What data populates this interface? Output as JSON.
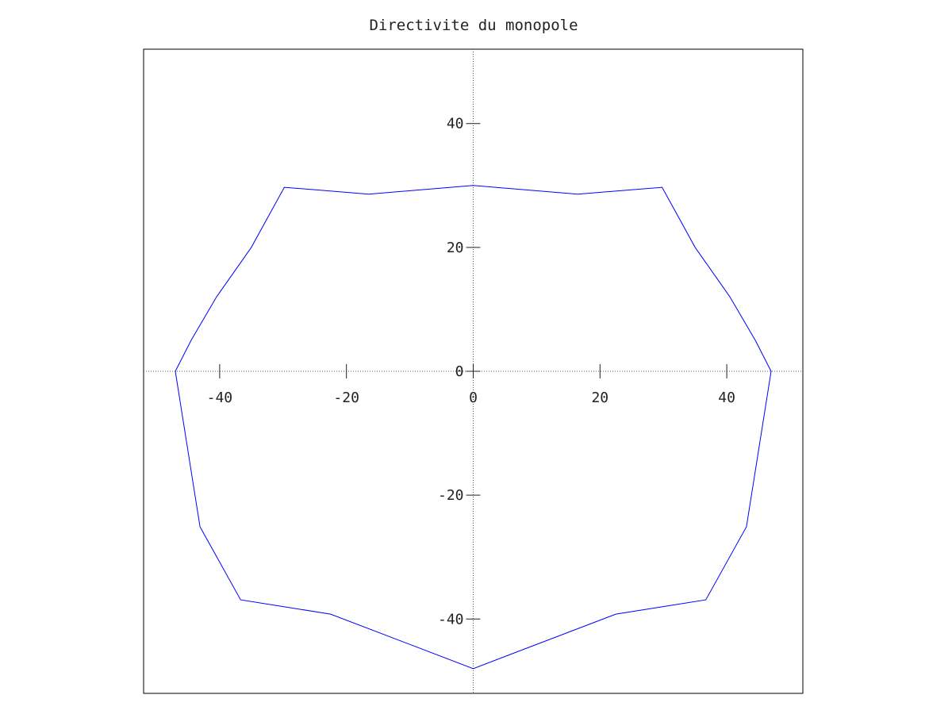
{
  "chart_data": {
    "type": "line",
    "title": "Directivite du monopole",
    "xlabel": "",
    "ylabel": "",
    "xlim": [
      -52,
      52
    ],
    "ylim": [
      -52,
      52
    ],
    "grid": false,
    "axes_through_origin": true,
    "x_ticks": [
      -40,
      -20,
      0,
      20,
      40
    ],
    "x_tick_labels": [
      "-40",
      "-20",
      "0",
      "20",
      "40"
    ],
    "y_ticks": [
      -40,
      -20,
      0,
      20,
      40
    ],
    "y_tick_labels": [
      "-40",
      "-20",
      "0",
      "20",
      "40"
    ],
    "series": [
      {
        "color": "#0000ff",
        "x": [
          -47,
          -44.5,
          -40.5,
          -35,
          -29.8,
          -16.5,
          0,
          16.5,
          29.8,
          35,
          40.5,
          44.5,
          47,
          43.1,
          36.7,
          22.5,
          0,
          -22.5,
          -36.7,
          -43.1,
          -47
        ],
        "y": [
          0,
          5,
          12,
          20,
          29.7,
          28.6,
          30,
          28.6,
          29.7,
          20,
          12,
          5,
          0,
          -25.1,
          -36.9,
          -39.2,
          -48,
          -39.2,
          -36.9,
          -25.1,
          0
        ]
      }
    ]
  }
}
